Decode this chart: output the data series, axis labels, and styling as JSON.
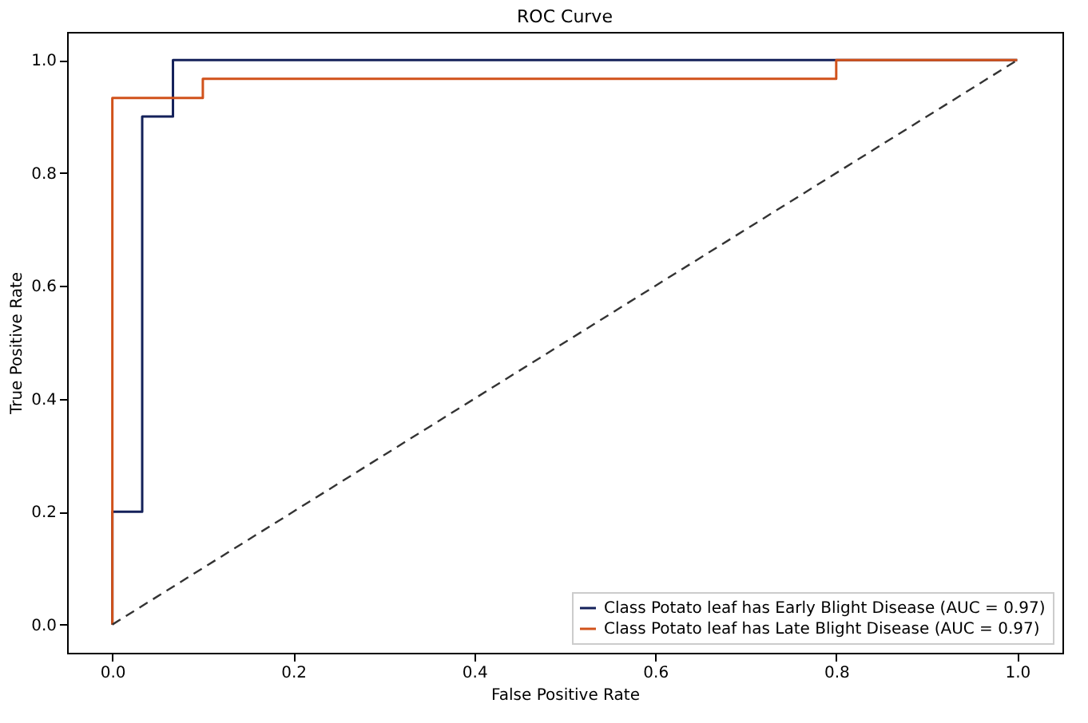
{
  "chart_data": {
    "type": "step",
    "title": "ROC Curve",
    "xlabel": "False Positive Rate",
    "ylabel": "True Positive Rate",
    "xlim": [
      -0.05,
      1.05
    ],
    "ylim": [
      -0.05,
      1.05
    ],
    "xticks": [
      {
        "value": 0,
        "label": "0.0"
      },
      {
        "value": 0.2,
        "label": "0.2"
      },
      {
        "value": 0.4,
        "label": "0.4"
      },
      {
        "value": 0.6,
        "label": "0.6"
      },
      {
        "value": 0.8,
        "label": "0.8"
      },
      {
        "value": 1,
        "label": "1.0"
      }
    ],
    "yticks": [
      {
        "value": 0,
        "label": "0.0"
      },
      {
        "value": 0.2,
        "label": "0.2"
      },
      {
        "value": 0.4,
        "label": "0.4"
      },
      {
        "value": 0.6,
        "label": "0.6"
      },
      {
        "value": 0.8,
        "label": "0.8"
      },
      {
        "value": 1,
        "label": "1.0"
      }
    ],
    "grid": false,
    "legend": "bottom right",
    "series": [
      {
        "name": "Class Potato leaf has Early Blight Disease (AUC = 0.97)",
        "color": "#14215a",
        "x": [
          0,
          0,
          0.033,
          0.067,
          1
        ],
        "values": [
          0,
          0.2,
          0.9,
          1,
          1
        ]
      },
      {
        "name": "Class Potato leaf has Late Blight Disease (AUC = 0.97)",
        "color": "#d1521b",
        "x": [
          0,
          0,
          0.1,
          0.8,
          1
        ],
        "values": [
          0,
          0.933,
          0.967,
          1,
          1
        ]
      },
      {
        "type": "line",
        "line_style": "dashed",
        "color": "#333333",
        "x": [
          0,
          1
        ],
        "values": [
          0,
          1
        ]
      }
    ]
  }
}
